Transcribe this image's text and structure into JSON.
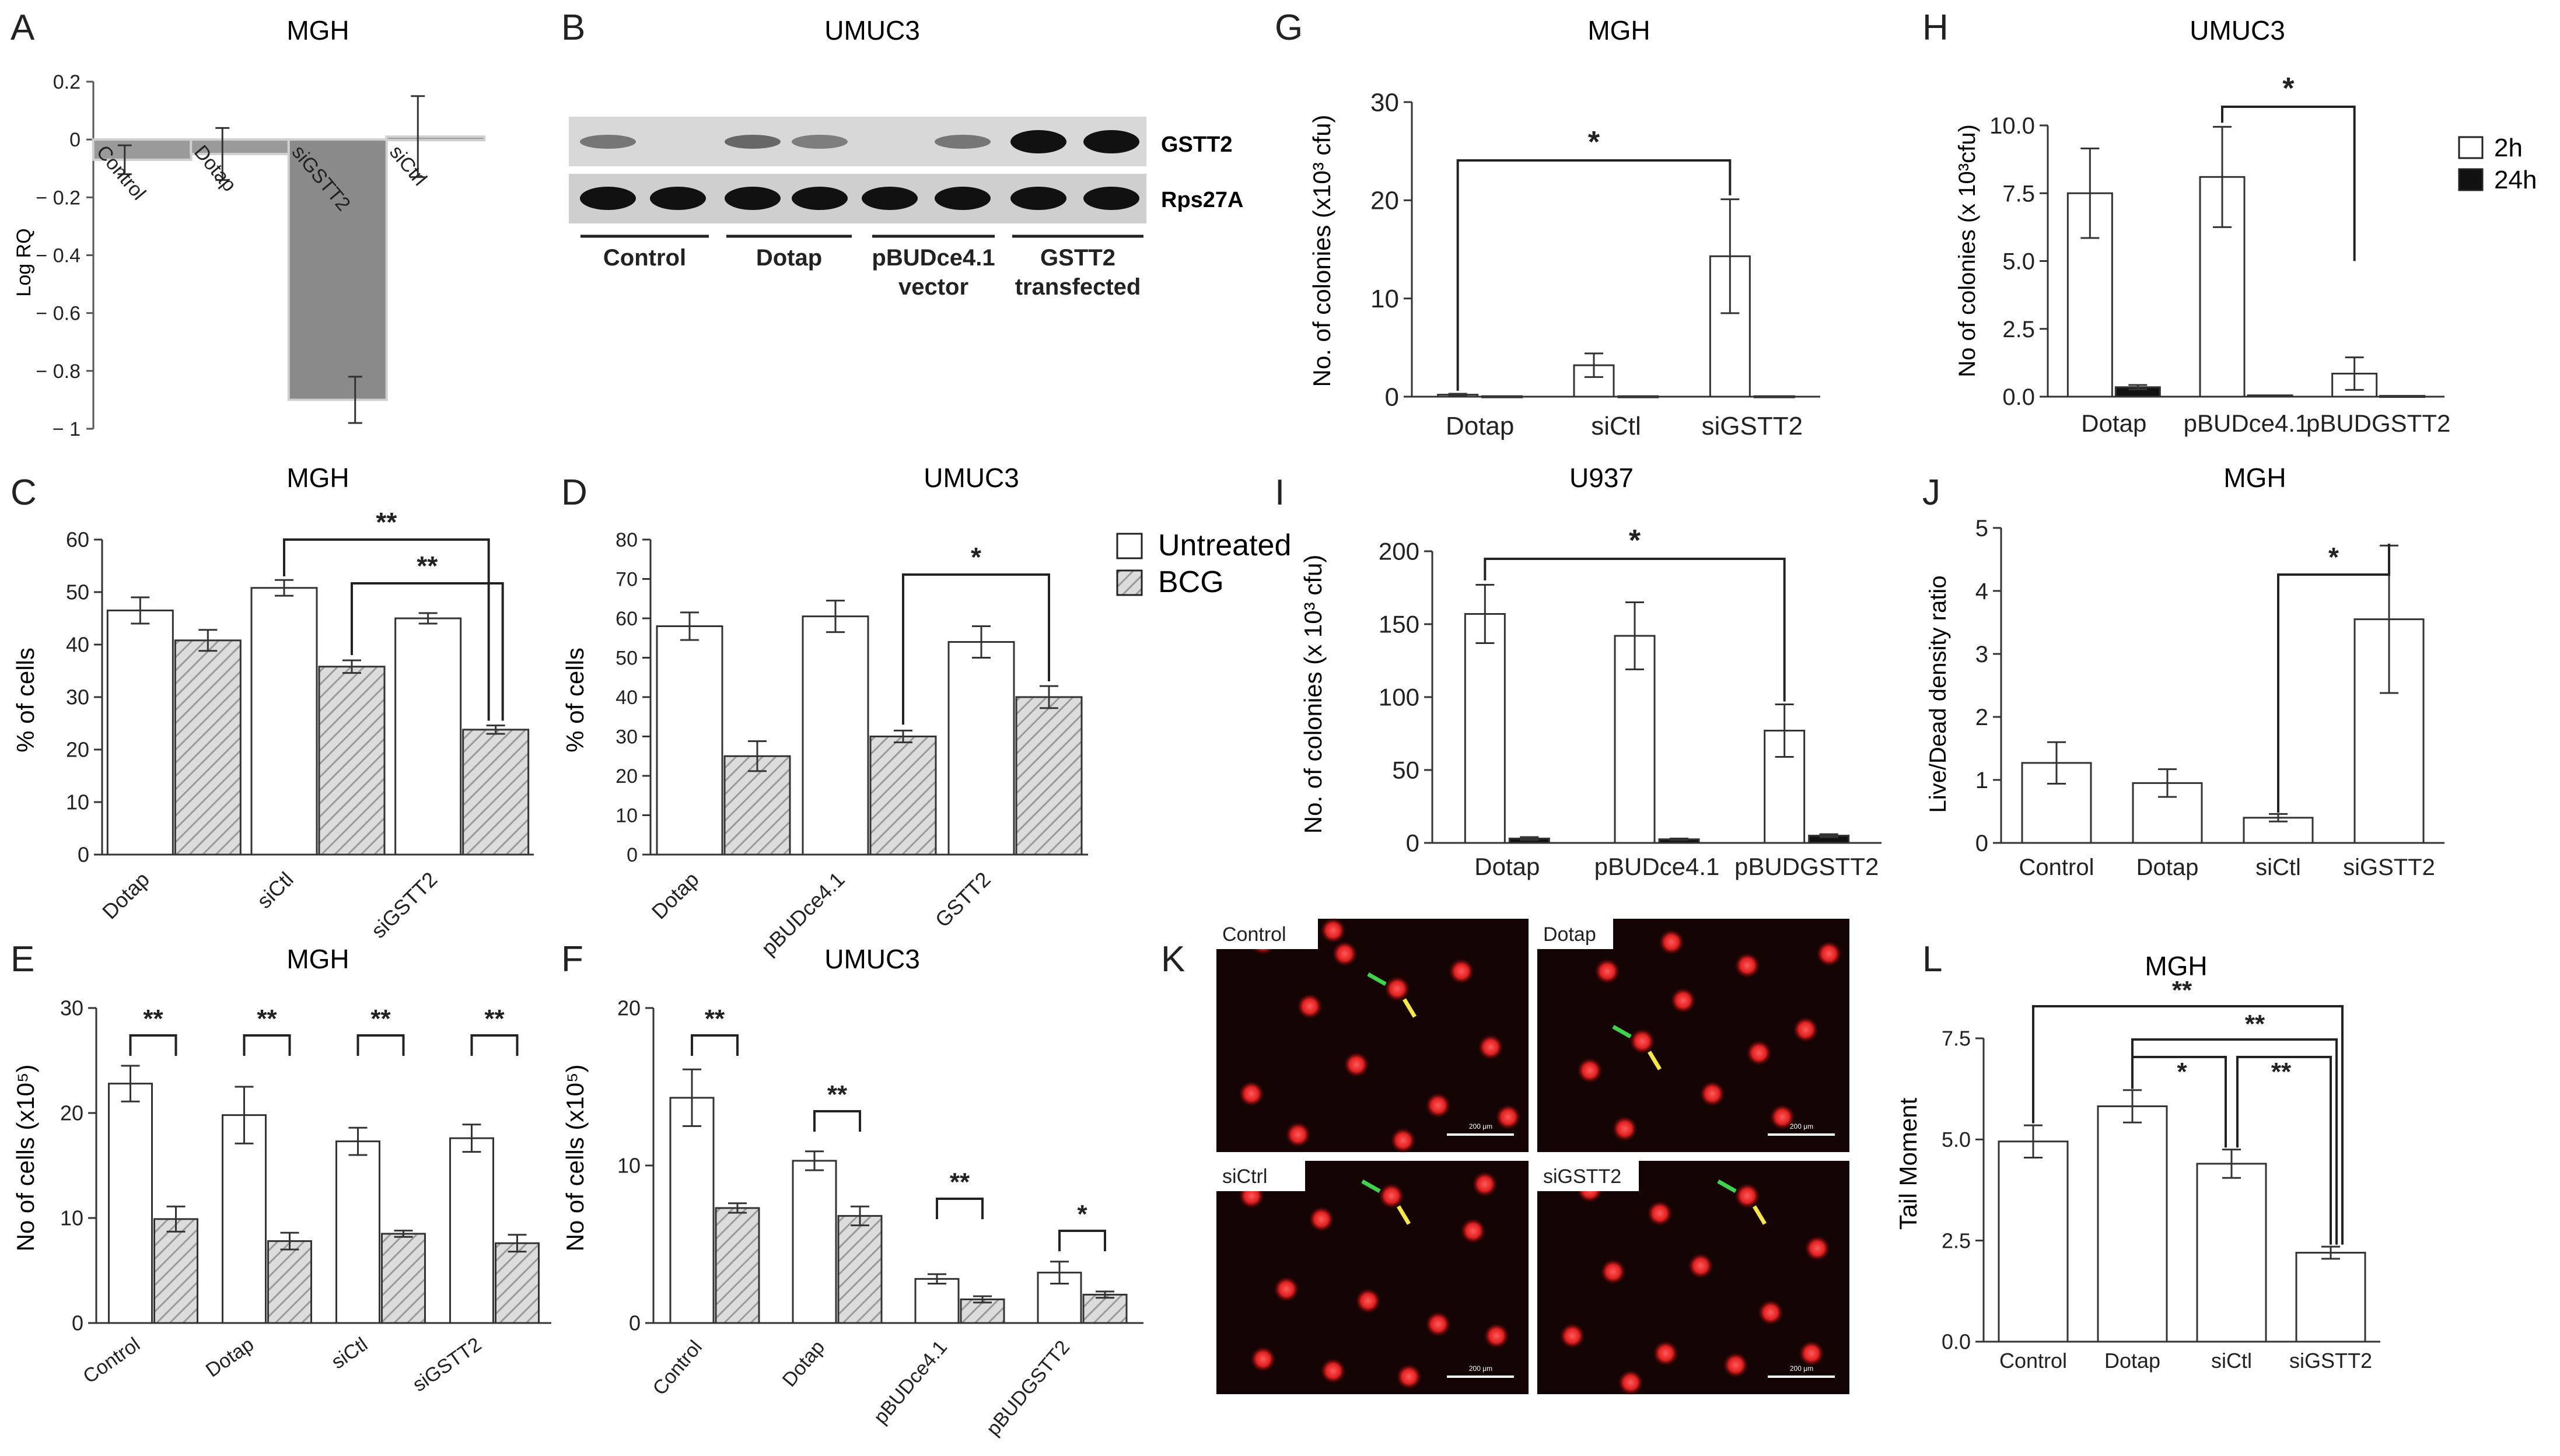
{
  "chart_data": [
    {
      "id": "A",
      "type": "bar",
      "title": "MGH",
      "ylabel": "Log RQ",
      "ylim": [
        -1,
        0.2
      ],
      "yticks": [
        0.2,
        0,
        -0.2,
        -0.4,
        -0.6,
        -0.8,
        -1
      ],
      "ytick_labels": [
        "0.2",
        "0",
        "− 0.2",
        "− 0.4",
        "− 0.6",
        "− 0.8",
        "− 1"
      ],
      "categories": [
        "Control",
        "Dotap",
        "siGSTT2",
        "siCtrl"
      ],
      "series": [
        {
          "values": [
            -0.07,
            -0.05,
            -0.9,
            0.01
          ],
          "errors": [
            0.05,
            0.09,
            0.08,
            0.14
          ]
        }
      ],
      "colors": [
        "#9a9a9a",
        "#9a9a9a",
        "#8a8a8a",
        "#9a9a9a"
      ]
    },
    {
      "id": "B",
      "type": "blot",
      "title": "UMUC3",
      "rows": [
        "GSTT2",
        "Rps27A"
      ],
      "groups": [
        "Control",
        "Dotap",
        "pBUDce4.1 vector",
        "GSTT2 transfected"
      ],
      "band_strength": [
        [
          0.3,
          0.0,
          0.4,
          0.25,
          0.0,
          0.3,
          1.0,
          1.0
        ],
        [
          1,
          1,
          1,
          1,
          1,
          1,
          1,
          1
        ]
      ]
    },
    {
      "id": "G",
      "type": "bar",
      "title": "MGH",
      "ylabel": "No. of colonies (x10³ cfu)",
      "ylim": [
        0,
        30
      ],
      "yticks": [
        0,
        10,
        20,
        30
      ],
      "categories": [
        "Dotap",
        "siCtl",
        "siGSTT2"
      ],
      "series": [
        {
          "name": "2h",
          "values": [
            0.2,
            3.2,
            14.3
          ],
          "errors": [
            0.1,
            1.2,
            5.8
          ]
        },
        {
          "name": "24h",
          "values": [
            0.05,
            0.05,
            0.05
          ],
          "errors": [
            0,
            0,
            0
          ]
        }
      ],
      "significance": [
        {
          "from": 0,
          "to": 2,
          "label": "*"
        }
      ]
    },
    {
      "id": "H",
      "type": "bar",
      "title": "UMUC3",
      "ylabel": "No of colonies (x 10³cfu)",
      "ylim": [
        0,
        10
      ],
      "yticks": [
        0,
        2.5,
        5,
        7.5,
        10
      ],
      "ytick_labels": [
        "0.0",
        "2.5",
        "5.0",
        "7.5",
        "10.0"
      ],
      "categories": [
        "Dotap",
        "pBUDce4.1",
        "pBUDGSTT2"
      ],
      "series": [
        {
          "name": "2h",
          "values": [
            7.5,
            8.1,
            0.85
          ],
          "errors": [
            1.65,
            1.85,
            0.6
          ]
        },
        {
          "name": "24h",
          "values": [
            0.35,
            0.05,
            0.03
          ],
          "errors": [
            0.08,
            0,
            0
          ]
        }
      ],
      "legend": [
        "2h",
        "24h"
      ],
      "significance": [
        {
          "from": 1,
          "to": 2,
          "label": "*"
        }
      ]
    },
    {
      "id": "C",
      "type": "bar",
      "title": "MGH",
      "ylabel": "% of cells",
      "ylim": [
        0,
        60
      ],
      "yticks": [
        0,
        10,
        20,
        30,
        40,
        50,
        60
      ],
      "categories": [
        "Dotap",
        "siCtl",
        "siGSTT2"
      ],
      "series": [
        {
          "name": "Untreated",
          "values": [
            46.5,
            50.8,
            45
          ],
          "errors": [
            2.5,
            1.5,
            1
          ]
        },
        {
          "name": "BCG",
          "values": [
            40.8,
            35.8,
            23.8
          ],
          "errors": [
            2,
            1.2,
            0.8
          ]
        }
      ],
      "significance": [
        {
          "label": "**"
        },
        {
          "label": "**"
        }
      ]
    },
    {
      "id": "D",
      "type": "bar",
      "title": "UMUC3",
      "ylabel": "% of cells",
      "ylim": [
        0,
        80
      ],
      "yticks": [
        0,
        10,
        20,
        30,
        40,
        50,
        60,
        70,
        80
      ],
      "categories": [
        "Dotap",
        "pBUDce4.1",
        "GSTT2"
      ],
      "series": [
        {
          "name": "Untreated",
          "values": [
            58,
            60.5,
            54
          ],
          "errors": [
            3.5,
            4,
            4
          ]
        },
        {
          "name": "BCG",
          "values": [
            25,
            30,
            40
          ],
          "errors": [
            3.8,
            1.5,
            2.8
          ]
        }
      ],
      "legend": [
        "Untreated",
        "BCG"
      ],
      "significance": [
        {
          "label": "*"
        }
      ]
    },
    {
      "id": "I",
      "type": "bar",
      "title": "U937",
      "ylabel": "No. of colonies (x 10³ cfu)",
      "ylim": [
        0,
        200
      ],
      "yticks": [
        0,
        50,
        100,
        150,
        200
      ],
      "categories": [
        "Dotap",
        "pBUDce4.1",
        "pBUDGSTT2"
      ],
      "series": [
        {
          "name": "2h",
          "values": [
            157,
            142,
            77
          ],
          "errors": [
            20,
            23,
            18
          ]
        },
        {
          "name": "24h",
          "values": [
            3,
            2.5,
            5
          ],
          "errors": [
            1,
            0.5,
            1
          ]
        }
      ],
      "significance": [
        {
          "from": 0,
          "to": 2,
          "label": "*"
        }
      ]
    },
    {
      "id": "J",
      "type": "bar",
      "title": "MGH",
      "ylabel": "Live/Dead density ratio",
      "ylim": [
        0,
        5
      ],
      "yticks": [
        0,
        1,
        2,
        3,
        4,
        5
      ],
      "categories": [
        "Control",
        "Dotap",
        "siCtl",
        "siGSTT2"
      ],
      "series": [
        {
          "values": [
            1.27,
            0.95,
            0.4,
            3.55
          ],
          "errors": [
            0.33,
            0.22,
            0.06,
            1.17
          ]
        }
      ],
      "significance": [
        {
          "from": 2,
          "to": 3,
          "label": "*"
        }
      ]
    },
    {
      "id": "E",
      "type": "bar",
      "title": "MGH",
      "ylabel": "No of cells (x10⁵)",
      "ylim": [
        0,
        30
      ],
      "yticks": [
        0,
        10,
        20,
        30
      ],
      "categories": [
        "Control",
        "Dotap",
        "siCtl",
        "siGSTT2"
      ],
      "series": [
        {
          "name": "Untreated",
          "values": [
            22.8,
            19.8,
            17.3,
            17.6
          ],
          "errors": [
            1.7,
            2.7,
            1.3,
            1.3
          ]
        },
        {
          "name": "BCG",
          "values": [
            9.9,
            7.8,
            8.5,
            7.6
          ],
          "errors": [
            1.2,
            0.8,
            0.3,
            0.8
          ]
        }
      ],
      "significance": [
        {
          "label": "**"
        },
        {
          "label": "**"
        },
        {
          "label": "**"
        },
        {
          "label": "**"
        }
      ]
    },
    {
      "id": "F",
      "type": "bar",
      "title": "UMUC3",
      "ylabel": "No of cells (x10⁵)",
      "ylim": [
        0,
        20
      ],
      "yticks": [
        0,
        10,
        20
      ],
      "categories": [
        "Control",
        "Dotap",
        "pBUDce4.1",
        "pBUDGSTT2"
      ],
      "series": [
        {
          "name": "Untreated",
          "values": [
            14.3,
            10.3,
            2.8,
            3.2
          ],
          "errors": [
            1.8,
            0.6,
            0.3,
            0.7
          ]
        },
        {
          "name": "BCG",
          "values": [
            7.3,
            6.8,
            1.5,
            1.8
          ],
          "errors": [
            0.3,
            0.6,
            0.2,
            0.2
          ]
        }
      ],
      "significance": [
        {
          "label": "**"
        },
        {
          "label": "**"
        },
        {
          "label": "**"
        },
        {
          "label": "*"
        }
      ]
    },
    {
      "id": "K",
      "type": "micrograph",
      "panels": [
        "Control",
        "Dotap",
        "siCtrl",
        "siGSTT2"
      ],
      "scale_bar": "200 μm"
    },
    {
      "id": "L",
      "type": "bar",
      "title": "MGH",
      "ylabel": "Tail Moment",
      "ylim": [
        0,
        7.5
      ],
      "yticks": [
        0,
        2.5,
        5,
        7.5
      ],
      "ytick_labels": [
        "0.0",
        "2.5",
        "5.0",
        "7.5"
      ],
      "categories": [
        "Control",
        "Dotap",
        "siCtl",
        "siGSTT2"
      ],
      "series": [
        {
          "values": [
            4.95,
            5.82,
            4.4,
            2.2
          ],
          "errors": [
            0.4,
            0.4,
            0.35,
            0.15
          ]
        }
      ],
      "significance": [
        {
          "label": "**"
        },
        {
          "label": "**"
        },
        {
          "label": "*"
        },
        {
          "label": "**"
        }
      ]
    }
  ]
}
